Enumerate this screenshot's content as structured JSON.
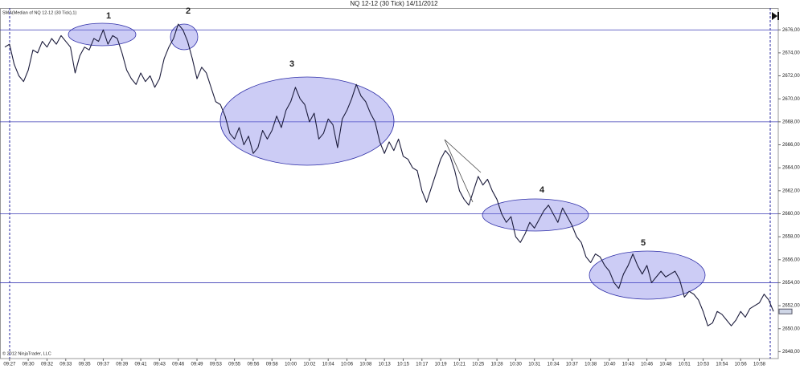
{
  "chart_data": {
    "type": "line",
    "title": "NQ 12-12 (30 Tick)  14/11/2012",
    "copyright": "© 2012 NinjaTrader, LLC",
    "categories": [
      null,
      "09:27",
      null,
      null,
      null,
      "09:30",
      null,
      null,
      null,
      "09:32",
      null,
      null,
      null,
      "09:33",
      null,
      null,
      null,
      "09:35",
      null,
      null,
      null,
      "09:37",
      null,
      null,
      null,
      "09:39",
      null,
      null,
      null,
      "09:41",
      null,
      null,
      null,
      "09:43",
      null,
      null,
      null,
      "09:46",
      null,
      null,
      null,
      "09:49",
      null,
      null,
      null,
      "09:53",
      null,
      null,
      null,
      "09:55",
      null,
      null,
      null,
      "09:56",
      null,
      null,
      null,
      "09:58",
      null,
      null,
      null,
      "10:00",
      null,
      null,
      null,
      "10:02",
      null,
      null,
      null,
      "10:04",
      null,
      null,
      null,
      "10:06",
      null,
      null,
      null,
      "10:08",
      null,
      null,
      null,
      "10:13",
      null,
      null,
      null,
      "10:15",
      null,
      null,
      null,
      "10:17",
      null,
      null,
      null,
      "10:19",
      null,
      null,
      null,
      "10:21",
      null,
      null,
      null,
      "10:25",
      null,
      null,
      null,
      "10:28",
      null,
      null,
      null,
      "10:30",
      null,
      null,
      null,
      "10:31",
      null,
      null,
      null,
      "10:34",
      null,
      null,
      null,
      "10:37",
      null,
      null,
      null,
      "10:38",
      null,
      null,
      null,
      "10:40",
      null,
      null,
      null,
      "10:43",
      null,
      null,
      null,
      "10:46",
      null,
      null,
      null,
      "10:48",
      null,
      null,
      null,
      "10:51",
      null,
      null,
      null,
      "10:53",
      null,
      null,
      null,
      "10:54",
      null,
      null,
      null,
      "10:56",
      null,
      null,
      null,
      "10:58",
      null,
      null,
      null
    ],
    "series": [
      {
        "name": "SMA(Median of NQ 12-12 (30 Tick),1)",
        "color": "#1c1c3c",
        "values": [
          2674.5,
          2674.75,
          2673.0,
          2672.0,
          2671.5,
          2672.5,
          2674.25,
          2674.0,
          2675.0,
          2674.5,
          2675.25,
          2674.75,
          2675.5,
          2675.0,
          2674.5,
          2672.25,
          2673.75,
          2674.5,
          2674.25,
          2675.25,
          2675.0,
          2676.0,
          2674.75,
          2675.5,
          2675.25,
          2674.0,
          2672.5,
          2671.75,
          2671.25,
          2672.25,
          2671.5,
          2672.0,
          2671.0,
          2671.75,
          2673.5,
          2674.5,
          2675.25,
          2676.5,
          2676.0,
          2675.0,
          2673.5,
          2671.75,
          2672.75,
          2672.25,
          2671.0,
          2669.75,
          2669.5,
          2668.5,
          2667.0,
          2666.5,
          2667.5,
          2666.0,
          2666.75,
          2665.25,
          2665.75,
          2667.25,
          2666.5,
          2667.25,
          2668.5,
          2667.5,
          2669.0,
          2669.75,
          2671.0,
          2670.0,
          2669.5,
          2668.0,
          2668.75,
          2666.5,
          2667.0,
          2668.25,
          2667.75,
          2665.75,
          2668.25,
          2669.0,
          2670.0,
          2671.25,
          2670.25,
          2669.75,
          2668.75,
          2668.0,
          2666.25,
          2665.25,
          2666.25,
          2665.5,
          2666.5,
          2665.0,
          2664.75,
          2664.0,
          2663.75,
          2662.0,
          2661.0,
          2662.25,
          2663.5,
          2664.75,
          2665.5,
          2665.0,
          2663.75,
          2662.0,
          2661.25,
          2660.75,
          2662.0,
          2663.25,
          2662.5,
          2663.0,
          2662.0,
          2661.25,
          2660.0,
          2659.25,
          2659.75,
          2658.0,
          2657.5,
          2658.25,
          2659.25,
          2658.75,
          2659.5,
          2660.25,
          2660.75,
          2660.0,
          2659.25,
          2660.5,
          2659.75,
          2659.0,
          2658.0,
          2657.5,
          2656.25,
          2655.75,
          2656.5,
          2656.25,
          2655.5,
          2655.0,
          2654.0,
          2653.5,
          2654.75,
          2655.5,
          2656.5,
          2655.5,
          2654.75,
          2655.5,
          2654.0,
          2654.5,
          2655.0,
          2654.5,
          2654.75,
          2655.0,
          2654.25,
          2652.75,
          2653.25,
          2653.0,
          2652.5,
          2651.5,
          2650.25,
          2650.5,
          2651.5,
          2651.25,
          2650.75,
          2650.25,
          2650.75,
          2651.5,
          2651.0,
          2651.75,
          2652.0,
          2652.25,
          2653.0,
          2652.5,
          2651.5
        ]
      }
    ],
    "ylim": [
      2647.4,
      2677.9
    ],
    "yticks": [
      {
        "value": 2676,
        "label": "2676,00"
      },
      {
        "value": 2674,
        "label": "2674,00"
      },
      {
        "value": 2672,
        "label": "2672,00"
      },
      {
        "value": 2670,
        "label": "2670,00"
      },
      {
        "value": 2668,
        "label": "2668,00"
      },
      {
        "value": 2666,
        "label": "2666,00"
      },
      {
        "value": 2664,
        "label": "2664,00"
      },
      {
        "value": 2662,
        "label": "2662,00"
      },
      {
        "value": 2660,
        "label": "2660,00"
      },
      {
        "value": 2658,
        "label": "2658,00"
      },
      {
        "value": 2656,
        "label": "2656,00"
      },
      {
        "value": 2654,
        "label": "2654,00"
      },
      {
        "value": 2652,
        "label": "2652,00"
      },
      {
        "value": 2650,
        "label": "2650,00"
      },
      {
        "value": 2648,
        "label": "2648,00"
      }
    ],
    "hlines": [
      2676,
      2668,
      2660,
      2654
    ],
    "hline_color": "#3b3bb5",
    "annotations": [
      "1",
      "2",
      "3",
      "4",
      "5"
    ],
    "grid": false
  }
}
